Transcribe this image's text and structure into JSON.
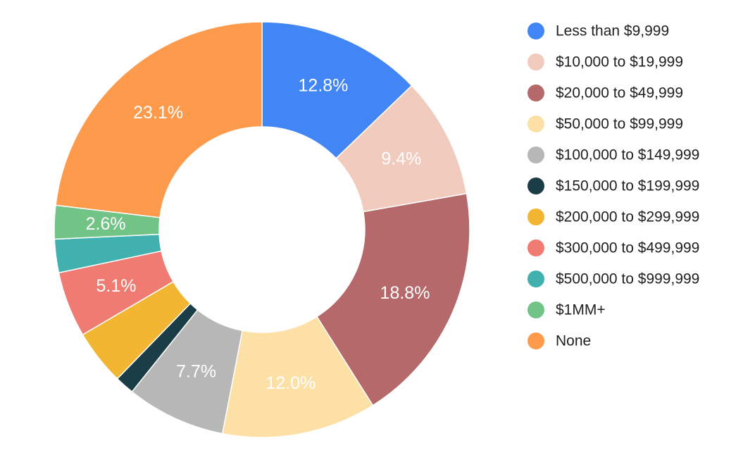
{
  "chart_data": {
    "type": "pie",
    "donut": true,
    "legend_position": "right",
    "categories": [
      "Less than $9,999",
      "$10,000 to $19,999",
      "$20,000 to $49,999",
      "$50,000 to $99,999",
      "$100,000 to $149,999",
      "$150,000 to $199,999",
      "$200,000 to $299,999",
      "$300,000 to $499,999",
      "$500,000 to $999,999",
      "$1MM+",
      "None"
    ],
    "values": [
      12.8,
      9.4,
      18.8,
      12.0,
      7.7,
      1.5,
      4.3,
      5.1,
      2.6,
      2.6,
      23.1
    ],
    "labels": [
      "12.8%",
      "9.4%",
      "18.8%",
      "12.0%",
      "7.7%",
      "",
      "",
      "5.1%",
      "",
      "2.6%",
      "23.1%"
    ],
    "colors": [
      "#4285f4",
      "#f2cbbf",
      "#b5696a",
      "#fde0a6",
      "#b7b7b8",
      "#1b3d46",
      "#f2b632",
      "#ef7b72",
      "#40b1ae",
      "#72c386",
      "#fd9a4c"
    ]
  }
}
